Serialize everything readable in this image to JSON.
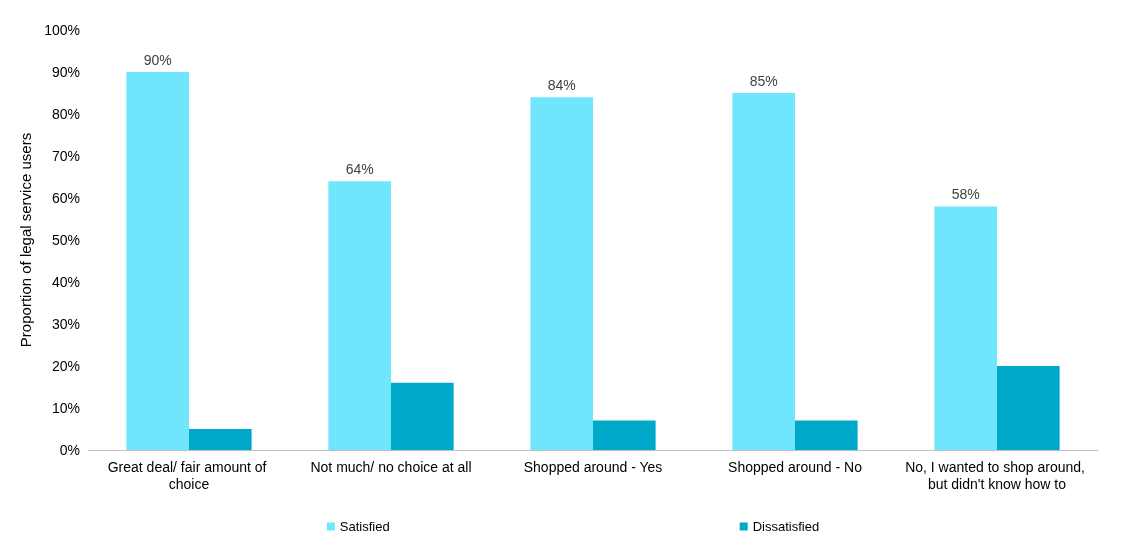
{
  "chart_data": {
    "type": "bar",
    "ylabel": "Proportion of legal service users",
    "categories": [
      "Great deal/ fair amount of choice",
      "Not much/ no choice at all",
      "Shopped around - Yes",
      "Shopped around - No",
      "No, I wanted to shop around, but didn't know how to"
    ],
    "series": [
      {
        "name": "Satisfied",
        "color": "#6fe6fc",
        "values": [
          90,
          64,
          84,
          85,
          58
        ],
        "value_labels": [
          "90%",
          "64%",
          "84%",
          "85%",
          "58%"
        ]
      },
      {
        "name": "Dissatisfied",
        "color": "#00a9c9",
        "values": [
          5,
          16,
          7,
          7,
          20
        ],
        "value_labels": [
          null,
          null,
          null,
          null,
          null
        ]
      }
    ],
    "ylim": [
      0,
      100
    ],
    "yticks": [
      {
        "value": 0,
        "label": "0%"
      },
      {
        "value": 10,
        "label": "10%"
      },
      {
        "value": 20,
        "label": "20%"
      },
      {
        "value": 30,
        "label": "30%"
      },
      {
        "value": 40,
        "label": "40%"
      },
      {
        "value": 50,
        "label": "50%"
      },
      {
        "value": 60,
        "label": "60%"
      },
      {
        "value": 70,
        "label": "70%"
      },
      {
        "value": 80,
        "label": "80%"
      },
      {
        "value": 90,
        "label": "90%"
      },
      {
        "value": 100,
        "label": "100%"
      }
    ],
    "grid": false,
    "legend": "bottom"
  }
}
